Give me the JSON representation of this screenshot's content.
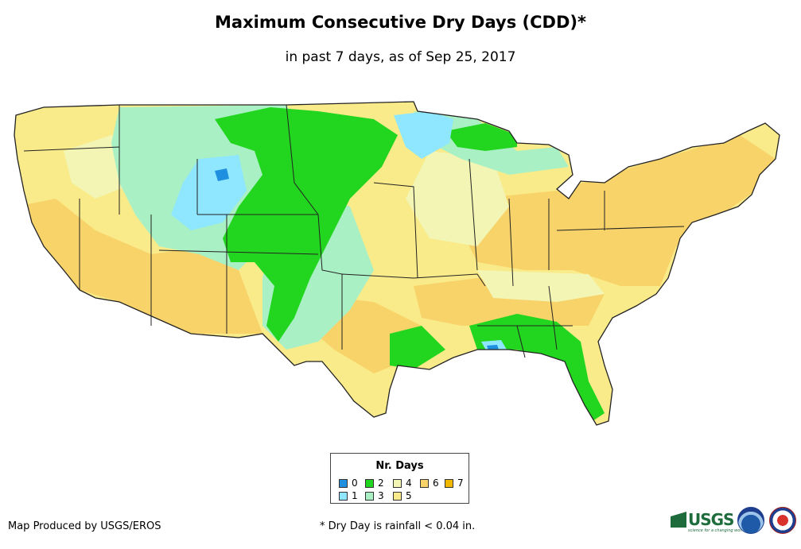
{
  "map": {
    "title": "Maximum Consecutive Dry Days (CDD)*",
    "subtitle": "in past 7 days, as of Sep 25, 2017",
    "region": "Contiguous United States",
    "palette": {
      "0": "#1f8fe0",
      "1": "#8fe6ff",
      "2": "#22d61f",
      "3": "#a9f0c4",
      "4": "#f2f5b4",
      "5": "#faeb8a",
      "6": "#f8d36a",
      "7": "#f0b800"
    },
    "background_color": "#ffffff",
    "border_color": "#222222"
  },
  "legend": {
    "title": "Nr. Days",
    "items": [
      {
        "label": "0",
        "color": "#1f8fe0"
      },
      {
        "label": "1",
        "color": "#8fe6ff"
      },
      {
        "label": "2",
        "color": "#22d61f"
      },
      {
        "label": "3",
        "color": "#a9f0c4"
      },
      {
        "label": "4",
        "color": "#f2f5b4"
      },
      {
        "label": "5",
        "color": "#faeb8a"
      },
      {
        "label": "6",
        "color": "#f8d36a"
      },
      {
        "label": "7",
        "color": "#f0b800"
      }
    ]
  },
  "footer": {
    "credit": "Map Produced by USGS/EROS",
    "footnote": "* Dry Day is rainfall < 0.04 in.",
    "logo_usgs_text": "USGS",
    "logo_usgs_tagline": "science for a changing world",
    "logo_noaa": "noaa-logo",
    "logo_nws": "nws-logo"
  }
}
